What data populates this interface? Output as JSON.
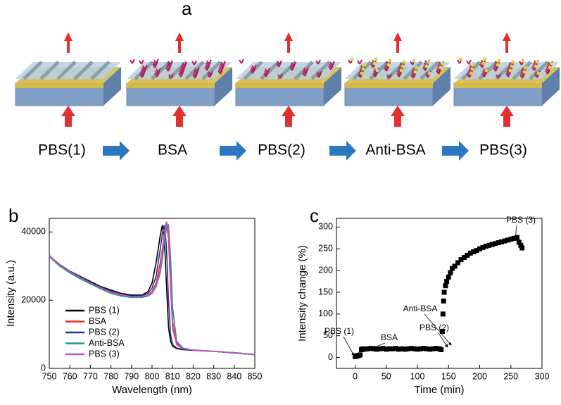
{
  "panel_labels": [
    "a",
    "b",
    "c"
  ],
  "steps": [
    "PBS(1)",
    "BSA",
    "PBS(2)",
    "Anti-BSA",
    "PBS(3)"
  ],
  "chart_data": [
    {
      "type": "line",
      "xlabel": "Wavelength (nm)",
      "ylabel": "Intensity  (a.u.)",
      "x": [
        750,
        755,
        760,
        765,
        770,
        775,
        780,
        785,
        790,
        795,
        798,
        800,
        802,
        804,
        805,
        806,
        807,
        808,
        809,
        810,
        812,
        815,
        820,
        830,
        840,
        850
      ],
      "xlim": [
        750,
        850
      ],
      "xticks": [
        750,
        760,
        770,
        780,
        790,
        800,
        810,
        820,
        830,
        840,
        850
      ],
      "ylim": [
        0,
        44000
      ],
      "yticks": [
        0,
        20000,
        40000
      ],
      "legend": "lower left",
      "series": [
        {
          "name": "PBS (1)",
          "color": "#000000",
          "values": [
            33000,
            30500,
            28500,
            27000,
            25500,
            24000,
            23000,
            22000,
            21500,
            21500,
            22500,
            25000,
            31000,
            39000,
            42000,
            38000,
            25000,
            12000,
            8000,
            6500,
            5800,
            5500,
            5300,
            5000,
            4600,
            4000
          ]
        },
        {
          "name": "BSA",
          "color": "#e8312a",
          "values": [
            33200,
            30200,
            28200,
            26500,
            25000,
            23500,
            22300,
            21500,
            21000,
            21000,
            21500,
            22500,
            25000,
            31000,
            35000,
            40000,
            43000,
            38000,
            24000,
            12000,
            7000,
            5700,
            5400,
            5000,
            4500,
            4000
          ]
        },
        {
          "name": "PBS (2)",
          "color": "#2e3192",
          "values": [
            33000,
            30300,
            28300,
            26800,
            25200,
            23800,
            22700,
            21800,
            21200,
            21300,
            22000,
            23500,
            27000,
            35000,
            39500,
            42000,
            36000,
            20000,
            10000,
            7000,
            6000,
            5600,
            5300,
            5000,
            4500,
            4000
          ]
        },
        {
          "name": "Anti-BSA",
          "color": "#179a96",
          "values": [
            32800,
            30000,
            28000,
            26300,
            24800,
            23300,
            22000,
            21200,
            20800,
            20800,
            21200,
            22000,
            24000,
            28000,
            32000,
            37000,
            41000,
            42000,
            33000,
            18000,
            8000,
            6000,
            5400,
            5000,
            4500,
            4000
          ]
        },
        {
          "name": "PBS (3)",
          "color": "#c84fbf",
          "values": [
            33100,
            30400,
            28400,
            26700,
            25100,
            23600,
            22400,
            21600,
            21000,
            21100,
            21500,
            22000,
            24500,
            29000,
            34000,
            39000,
            43000,
            41000,
            28000,
            14000,
            7500,
            5800,
            5400,
            5000,
            4600,
            4100
          ]
        }
      ]
    },
    {
      "type": "scatter",
      "xlabel": "Time (min)",
      "ylabel": "Intensity change (%)",
      "xlim": [
        -30,
        300
      ],
      "xticks": [
        0,
        50,
        100,
        150,
        200,
        250,
        300
      ],
      "ylim": [
        -25,
        320
      ],
      "yticks": [
        0,
        50,
        100,
        150,
        200,
        250,
        300
      ],
      "color": "#000000",
      "x": [
        0,
        2,
        4,
        6,
        8,
        10,
        12,
        15,
        20,
        25,
        30,
        35,
        40,
        45,
        50,
        55,
        60,
        65,
        70,
        75,
        80,
        85,
        90,
        95,
        100,
        105,
        110,
        115,
        120,
        125,
        130,
        135,
        138,
        140,
        141,
        142,
        143,
        145,
        147,
        150,
        153,
        156,
        160,
        165,
        170,
        175,
        180,
        185,
        190,
        195,
        200,
        205,
        210,
        215,
        220,
        225,
        230,
        235,
        240,
        245,
        250,
        255,
        260,
        263,
        266,
        268
      ],
      "values": [
        2,
        3,
        4,
        5,
        6,
        18,
        20,
        19,
        20,
        21,
        20,
        19,
        20,
        21,
        19,
        20,
        20,
        21,
        19,
        20,
        19,
        20,
        21,
        20,
        19,
        20,
        21,
        20,
        19,
        20,
        21,
        20,
        18,
        60,
        100,
        130,
        150,
        165,
        175,
        185,
        195,
        205,
        210,
        218,
        225,
        230,
        235,
        240,
        243,
        246,
        250,
        253,
        256,
        258,
        260,
        262,
        264,
        266,
        268,
        270,
        272,
        274,
        276,
        265,
        258,
        252
      ],
      "annotations": [
        "PBS (1)",
        "BSA",
        "PBS (2)",
        "Anti-BSA",
        "PBS (3)"
      ]
    }
  ]
}
